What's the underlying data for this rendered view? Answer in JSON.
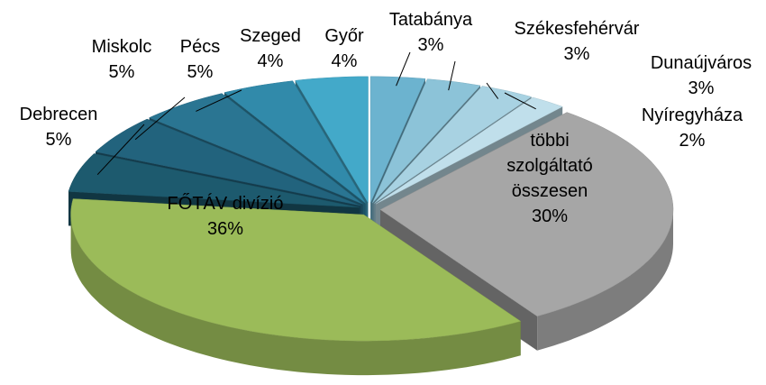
{
  "chart_data": {
    "type": "pie",
    "categories": [
      "Tatabánya",
      "Székesfehérvár",
      "Dunaújváros",
      "Nyíregyháza",
      "többi szolgáltató összesen",
      "FŐTÁV divízió",
      "Debrecen",
      "Miskolc",
      "Pécs",
      "Szeged",
      "Győr"
    ],
    "values": [
      3,
      3,
      3,
      2,
      30,
      36,
      5,
      5,
      5,
      4,
      4
    ],
    "value_labels": [
      "3%",
      "3%",
      "3%",
      "2%",
      "30%",
      "36%",
      "5%",
      "5%",
      "5%",
      "4%",
      "4%"
    ],
    "colors": [
      "#6cb3cf",
      "#8cc3d8",
      "#a8d2e2",
      "#c0dfeb",
      "#a6a6a6",
      "#9bbb59",
      "#1d5a6e",
      "#22637d",
      "#2a7592",
      "#318aaa",
      "#43a9c9"
    ]
  }
}
